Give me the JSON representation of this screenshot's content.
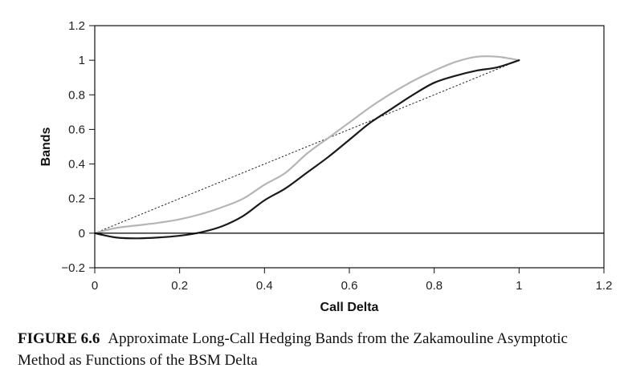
{
  "chart_data": {
    "type": "line",
    "title": "",
    "xlabel": "Call Delta",
    "ylabel": "Bands",
    "xlim": [
      0,
      1.2
    ],
    "ylim": [
      -0.2,
      1.2
    ],
    "x_ticks": [
      "0",
      "0.2",
      "0.4",
      "0.6",
      "0.8",
      "1",
      "1.2"
    ],
    "y_ticks": [
      "−0.2",
      "0",
      "0.2",
      "0.4",
      "0.6",
      "0.8",
      "1",
      "1.2"
    ],
    "grid": false,
    "legend": "none",
    "series": [
      {
        "style": "dotted",
        "color": "#222222",
        "x": [
          0,
          1
        ],
        "y": [
          0,
          1
        ]
      },
      {
        "style": "solid",
        "color": "#b5b5b5",
        "x": [
          0,
          0.05,
          0.1,
          0.15,
          0.2,
          0.25,
          0.3,
          0.35,
          0.4,
          0.45,
          0.5,
          0.55,
          0.6,
          0.65,
          0.7,
          0.75,
          0.8,
          0.85,
          0.9,
          0.95,
          1.0
        ],
        "y": [
          0,
          0.03,
          0.045,
          0.06,
          0.08,
          0.11,
          0.15,
          0.2,
          0.28,
          0.35,
          0.46,
          0.55,
          0.64,
          0.73,
          0.81,
          0.88,
          0.94,
          0.99,
          1.02,
          1.02,
          1.0
        ]
      },
      {
        "style": "solid",
        "color": "#1a1a1a",
        "x": [
          0,
          0.05,
          0.1,
          0.15,
          0.2,
          0.25,
          0.3,
          0.35,
          0.4,
          0.45,
          0.5,
          0.55,
          0.6,
          0.65,
          0.7,
          0.75,
          0.8,
          0.85,
          0.9,
          0.95,
          1.0
        ],
        "y": [
          0,
          -0.025,
          -0.03,
          -0.025,
          -0.015,
          0.005,
          0.04,
          0.1,
          0.19,
          0.26,
          0.35,
          0.44,
          0.54,
          0.64,
          0.72,
          0.8,
          0.87,
          0.91,
          0.94,
          0.96,
          1.0
        ]
      },
      {
        "style": "solid",
        "color": "#000000",
        "x": [
          0,
          1.2
        ],
        "y": [
          0,
          0
        ]
      }
    ]
  },
  "caption": {
    "label": "FIGURE 6.6",
    "text": "Approximate Long-Call Hedging Bands from the Zakamouline Asymptotic Method as Functions of the BSM Delta"
  }
}
